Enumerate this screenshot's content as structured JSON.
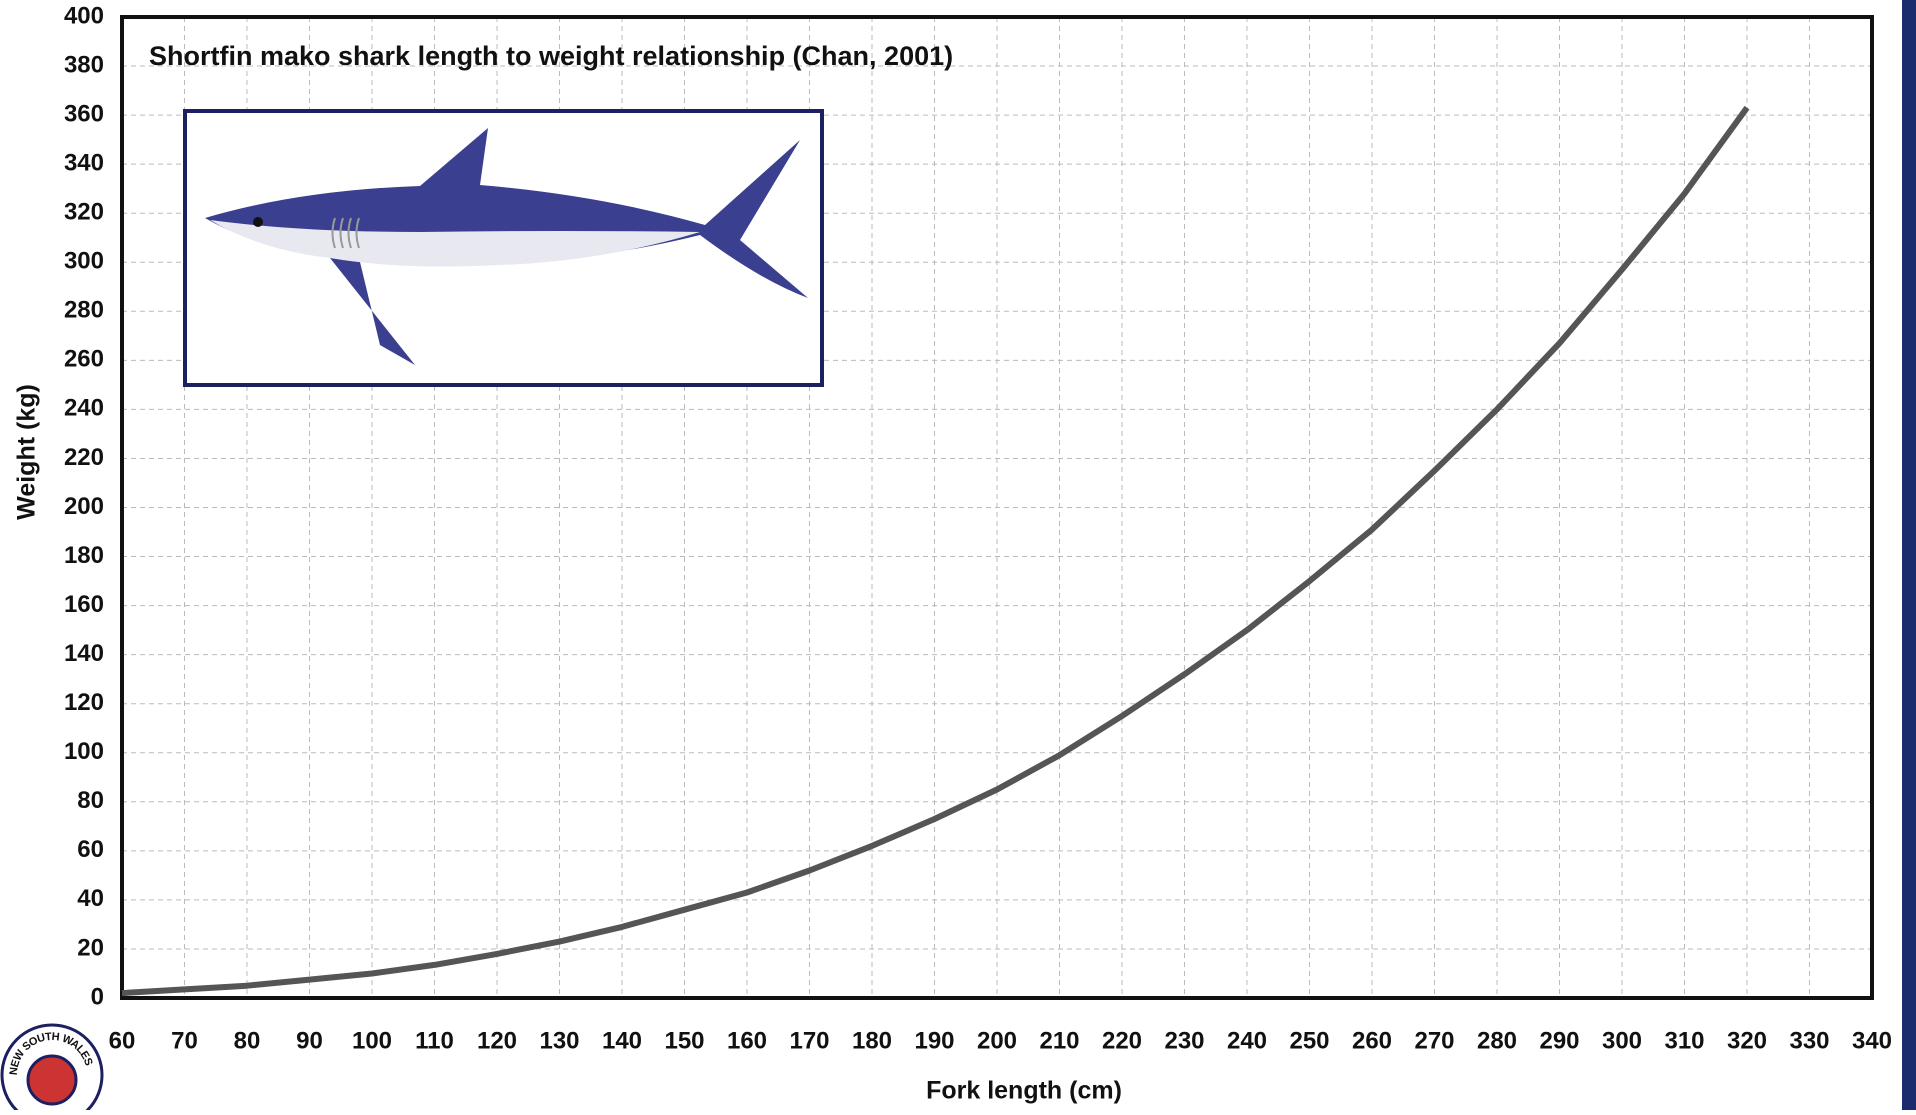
{
  "chart_data": {
    "type": "line",
    "title": "Shortfin mako shark length to weight relationship (Chan, 2001)",
    "x_label": "Fork length (cm)",
    "y_label": "Weight (kg)",
    "x": [
      60,
      70,
      80,
      90,
      100,
      110,
      120,
      130,
      140,
      150,
      160,
      170,
      180,
      190,
      200,
      210,
      220,
      230,
      240,
      250,
      260,
      270,
      280,
      290,
      300,
      310,
      320
    ],
    "values": [
      2,
      3.5,
      5,
      7.5,
      10,
      13.5,
      18,
      23,
      29,
      36,
      43,
      52,
      62,
      73,
      85,
      99,
      115,
      132,
      150,
      170,
      191,
      215,
      240,
      267,
      297,
      328,
      363
    ],
    "color": "#555555",
    "xlim": [
      60,
      340
    ],
    "xticks": [
      60,
      70,
      80,
      90,
      100,
      110,
      120,
      130,
      140,
      150,
      160,
      170,
      180,
      190,
      200,
      210,
      220,
      230,
      240,
      250,
      260,
      270,
      280,
      290,
      300,
      310,
      320,
      330,
      340
    ],
    "ylim": [
      0,
      400
    ],
    "yticks": [
      0,
      20,
      40,
      60,
      80,
      100,
      120,
      140,
      160,
      180,
      200,
      220,
      240,
      260,
      280,
      300,
      320,
      340,
      360,
      380,
      400
    ],
    "grid": true
  },
  "logo_text": "NEW SOUTH WALES"
}
